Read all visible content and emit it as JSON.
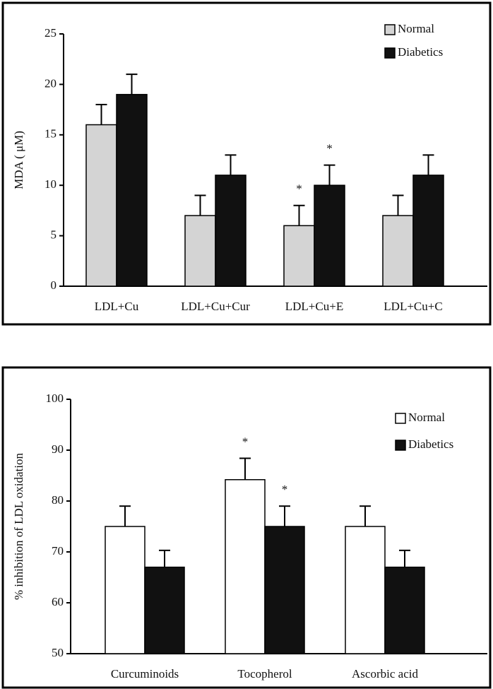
{
  "chart_data": [
    {
      "type": "bar",
      "y_label": "MDA ( μM)",
      "categories": [
        "LDL+Cu",
        "LDL+Cu+Cur",
        "LDL+Cu+E",
        "LDL+Cu+C"
      ],
      "series": [
        {
          "name": "Normal",
          "color": "#d4d4d4",
          "values": [
            16,
            7,
            6,
            7
          ],
          "errors": [
            2,
            2,
            2,
            2
          ],
          "annotations": [
            null,
            null,
            "*",
            null
          ]
        },
        {
          "name": "Diabetics",
          "color": "#111111",
          "values": [
            19,
            11,
            10,
            11
          ],
          "errors": [
            2,
            2,
            2,
            2
          ],
          "annotations": [
            null,
            null,
            "*",
            null
          ]
        }
      ],
      "ylim": [
        0,
        25
      ],
      "yticks": [
        0,
        5,
        10,
        15,
        20,
        25
      ],
      "legend": "top-right"
    },
    {
      "type": "bar",
      "y_label": "% inhibition of LDL oxidation",
      "categories": [
        "Curcuminoids",
        "Tocopherol",
        "Ascorbic acid"
      ],
      "series": [
        {
          "name": "Normal",
          "color": "#ffffff",
          "values": [
            75,
            84.2,
            75
          ],
          "errors": [
            4,
            4.2,
            4
          ],
          "annotations": [
            null,
            "*",
            null
          ]
        },
        {
          "name": "Diabetics",
          "color": "#111111",
          "values": [
            67,
            75,
            67
          ],
          "errors": [
            3.3,
            4,
            3.3
          ],
          "annotations": [
            null,
            "*",
            null
          ]
        }
      ],
      "ylim": [
        50,
        100
      ],
      "yticks": [
        50,
        60,
        70,
        80,
        90,
        100
      ],
      "legend": "top-right"
    }
  ]
}
